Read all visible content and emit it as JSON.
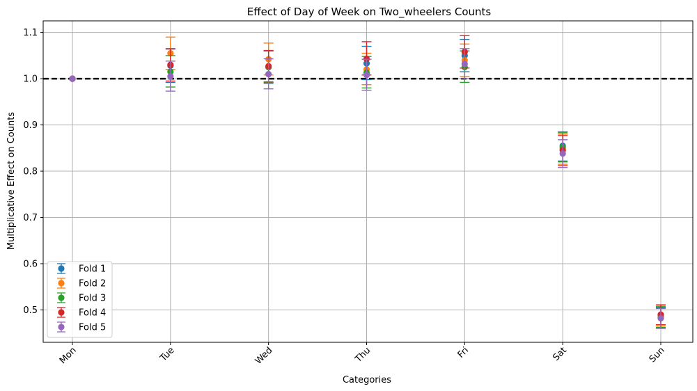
{
  "chart_data": {
    "type": "scatter",
    "title": "Effect of Day of Week on Two_wheelers Counts",
    "xlabel": "Categories",
    "ylabel": "Multiplicative Effect on Counts",
    "categories": [
      "Mon",
      "Tue",
      "Wed",
      "Thu",
      "Fri",
      "Sat",
      "Sun"
    ],
    "ylim": [
      0.43,
      1.125
    ],
    "yticks": [
      0.5,
      0.6,
      0.7,
      0.8,
      0.9,
      1.0,
      1.1
    ],
    "ytick_labels": [
      "0.5",
      "0.6",
      "0.7",
      "0.8",
      "0.9",
      "1.0",
      "1.1"
    ],
    "reference_line": 1.0,
    "grid": true,
    "legend_position": "lower-left",
    "series": [
      {
        "name": "Fold 1",
        "color": "#1f77b4",
        "values": [
          1.0,
          1.028,
          1.025,
          1.033,
          1.05,
          0.855,
          0.482
        ],
        "err_low": [
          1.0,
          0.992,
          0.99,
          0.998,
          1.015,
          0.822,
          0.462
        ],
        "err_high": [
          1.0,
          1.064,
          1.06,
          1.07,
          1.085,
          0.885,
          0.505
        ]
      },
      {
        "name": "Fold 2",
        "color": "#ff7f0e",
        "values": [
          1.0,
          1.055,
          1.042,
          1.02,
          1.04,
          0.848,
          0.488
        ],
        "err_low": [
          1.0,
          1.02,
          1.008,
          0.987,
          1.005,
          0.815,
          0.465
        ],
        "err_high": [
          1.0,
          1.09,
          1.077,
          1.055,
          1.075,
          0.88,
          0.51
        ]
      },
      {
        "name": "Fold 3",
        "color": "#2ca02c",
        "values": [
          1.0,
          1.015,
          1.025,
          1.013,
          1.025,
          0.852,
          0.484
        ],
        "err_low": [
          1.0,
          0.982,
          0.992,
          0.98,
          0.992,
          0.82,
          0.462
        ],
        "err_high": [
          1.0,
          1.05,
          1.06,
          1.048,
          1.06,
          0.883,
          0.507
        ]
      },
      {
        "name": "Fold 4",
        "color": "#d62728",
        "values": [
          1.0,
          1.03,
          1.027,
          1.043,
          1.058,
          0.845,
          0.49
        ],
        "err_low": [
          1.0,
          0.995,
          0.993,
          1.008,
          1.023,
          0.812,
          0.468
        ],
        "err_high": [
          1.0,
          1.065,
          1.061,
          1.08,
          1.093,
          0.877,
          0.511
        ]
      },
      {
        "name": "Fold 5",
        "color": "#9467bd",
        "values": [
          1.0,
          1.005,
          1.01,
          1.008,
          1.032,
          0.838,
          0.482
        ],
        "err_low": [
          1.0,
          0.973,
          0.978,
          0.975,
          1.0,
          0.808,
          0.46
        ],
        "err_high": [
          1.0,
          1.038,
          1.043,
          1.042,
          1.065,
          0.868,
          0.503
        ]
      }
    ]
  }
}
